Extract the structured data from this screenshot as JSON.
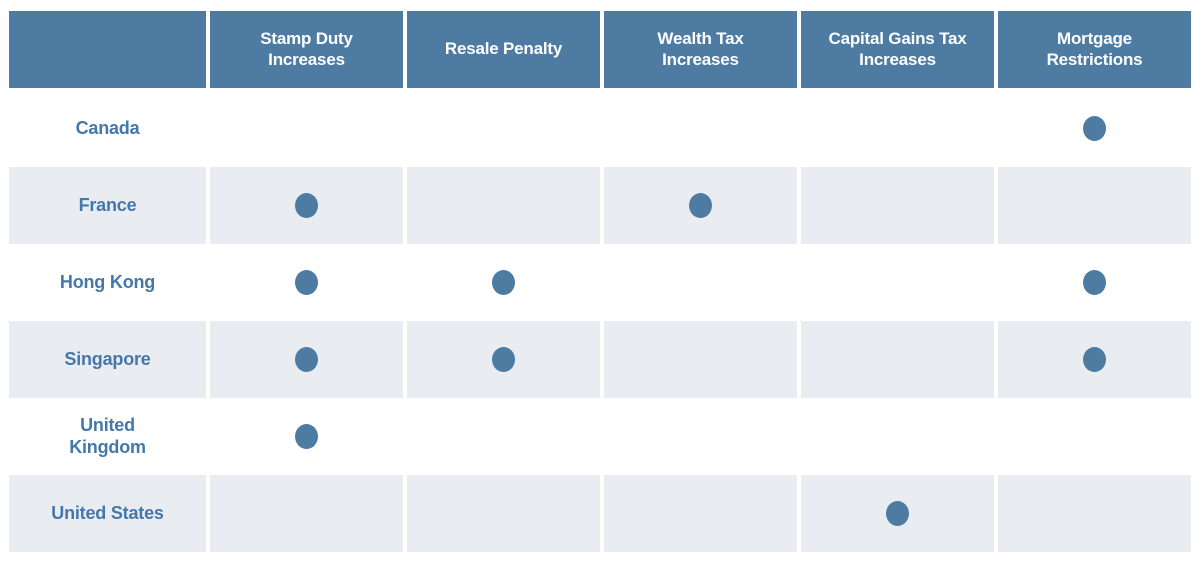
{
  "colors": {
    "header_bg": "#4d7ba2",
    "header_text": "#ffffff",
    "row_bg": "#ffffff",
    "row_alt_bg": "#e9edf2",
    "label_text": "#4478a9",
    "dot": "#4d7ba2"
  },
  "table": {
    "corner_label": "",
    "columns": [
      "Stamp Duty\nIncreases",
      "Resale Penalty",
      "Wealth Tax\nIncreases",
      "Capital Gains Tax\nIncreases",
      "Mortgage\nRestrictions"
    ],
    "rows": [
      {
        "label": "Canada",
        "dots": [
          false,
          false,
          false,
          false,
          true
        ]
      },
      {
        "label": "France",
        "dots": [
          true,
          false,
          true,
          false,
          false
        ]
      },
      {
        "label": "Hong Kong",
        "dots": [
          true,
          true,
          false,
          false,
          true
        ]
      },
      {
        "label": "Singapore",
        "dots": [
          true,
          true,
          false,
          false,
          true
        ]
      },
      {
        "label": "United\nKingdom",
        "dots": [
          true,
          false,
          false,
          false,
          false
        ]
      },
      {
        "label": "United States",
        "dots": [
          false,
          false,
          false,
          true,
          false
        ]
      }
    ]
  },
  "chart_data": {
    "type": "table",
    "title": "",
    "columns": [
      "Stamp Duty Increases",
      "Resale Penalty",
      "Wealth Tax Increases",
      "Capital Gains Tax Increases",
      "Mortgage Restrictions"
    ],
    "rows": [
      {
        "label": "Canada",
        "values": [
          0,
          0,
          0,
          0,
          1
        ]
      },
      {
        "label": "France",
        "values": [
          1,
          0,
          1,
          0,
          0
        ]
      },
      {
        "label": "Hong Kong",
        "values": [
          1,
          1,
          0,
          0,
          1
        ]
      },
      {
        "label": "Singapore",
        "values": [
          1,
          1,
          0,
          0,
          1
        ]
      },
      {
        "label": "United Kingdom",
        "values": [
          1,
          0,
          0,
          0,
          0
        ]
      },
      {
        "label": "United States",
        "values": [
          0,
          0,
          0,
          1,
          0
        ]
      }
    ],
    "marker": "filled-dot",
    "legend_position": "none",
    "grid": false
  }
}
